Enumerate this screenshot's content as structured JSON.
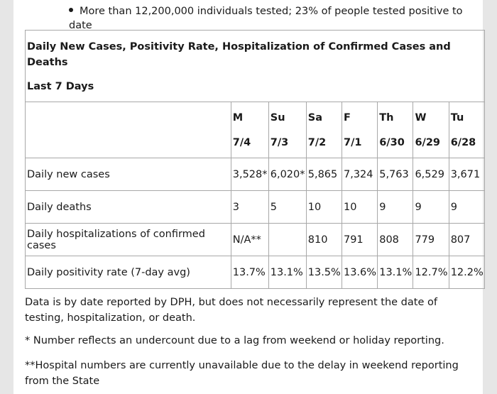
{
  "bullet": "More than 12,200,000 individuals tested; 23% of people tested positive to date",
  "table": {
    "title": "Daily New Cases, Positivity Rate, Hospitalization of Confirmed Cases and Deaths",
    "subtitle": "Last 7 Days",
    "days": [
      {
        "day": "M",
        "date": "7/4"
      },
      {
        "day": "Su",
        "date": "7/3"
      },
      {
        "day": "Sa",
        "date": "7/2"
      },
      {
        "day": "F",
        "date": "7/1"
      },
      {
        "day": "Th",
        "date": "6/30"
      },
      {
        "day": "W",
        "date": "6/29"
      },
      {
        "day": "Tu",
        "date": "6/28"
      }
    ],
    "rows": [
      {
        "label": "Daily new cases",
        "values": [
          "3,528*",
          "6,020*",
          "5,865",
          "7,324",
          "5,763",
          "6,529",
          "3,671"
        ]
      },
      {
        "label": "Daily deaths",
        "values": [
          "3",
          "5",
          "10",
          "10",
          "9",
          "9",
          "9"
        ]
      },
      {
        "label": "Daily hospitalizations of confirmed cases",
        "values": [
          "N/A**",
          "",
          "810",
          "791",
          "808",
          "779",
          "807"
        ]
      },
      {
        "label": "Daily positivity rate (7-day avg)",
        "values": [
          "13.7%",
          "13.1%",
          "13.5%",
          "13.6%",
          "13.1%",
          "12.7%",
          "12.2%"
        ]
      }
    ]
  },
  "notes": [
    "Data is by date reported by DPH, but does not necessarily represent the date of testing, hospitalization, or death.",
    "* Number reflects an undercount due to a lag from weekend or holiday reporting.",
    "**Hospital numbers are currently unavailable due to the delay in weekend reporting from the State"
  ]
}
